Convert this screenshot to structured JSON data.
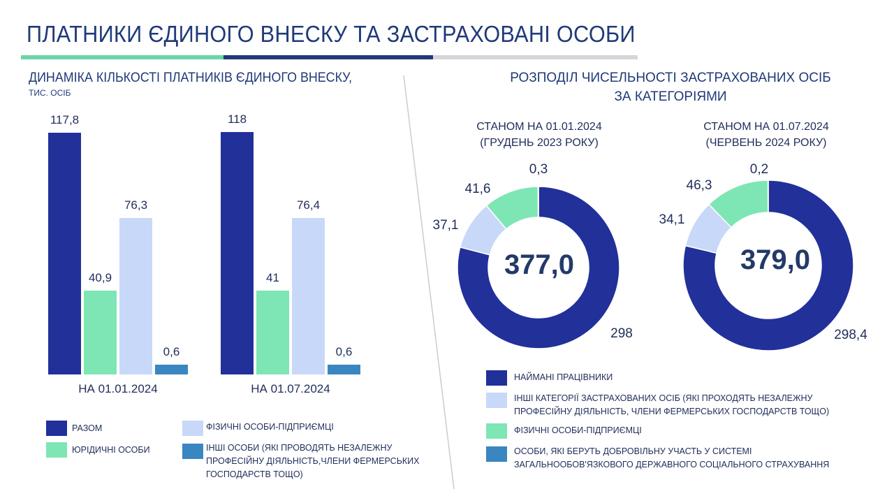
{
  "title": "ПЛАТНИКИ ЄДИНОГО ВНЕСКУ ТА ЗАСТРАХОВАНІ ОСОБИ",
  "colors": {
    "navy": "#22309a",
    "green": "#7de6b4",
    "lightblue": "#c8d8f8",
    "steel": "#3a86c0",
    "title_line_green": "#6bd6a8",
    "title_line_dark": "#1f3a78",
    "title_line_grey": "#d4d6da"
  },
  "left": {
    "title": "ДИНАМІКА КІЛЬКОСТІ ПЛАТНИКІВ ЄДИНОГО ВНЕСКУ,",
    "subtitle": "ТИС. ОСІБ",
    "legend": [
      {
        "label": "РАЗОМ",
        "color": "#22309a"
      },
      {
        "label": "ЮРІДИЧНІ ОСОБИ",
        "color": "#7de6b4"
      },
      {
        "label": "ФІЗИЧНІ ОСОБИ-ПІДПРИЄМЦІ",
        "color": "#c8d8f8"
      },
      {
        "label": "ІНШІ ОСОБИ (ЯКІ ПРОВОДЯТЬ НЕЗАЛЕЖНУ ПРОФЕСІЙНУ ДІЯЛЬНІСТЬ,ЧЛЕНИ ФЕРМЕРСЬКИХ ГОСПОДАРСТВ ТОЩО)",
        "color": "#3a86c0"
      }
    ]
  },
  "right": {
    "title_line1": "РОЗПОДІЛ ЧИСЕЛЬНОСТІ ЗАСТРАХОВАНИХ ОСІБ",
    "title_line2": "ЗА КАТЕГОРІЯМИ",
    "legend": [
      {
        "label": "НАЙМАНІ ПРАЦІВНИКИ",
        "color": "#22309a"
      },
      {
        "label": "ІНШІ КАТЕГОРІЇ ЗАСТРАХОВАНИХ ОСІБ (ЯКІ ПРОХОДЯТЬ НЕЗАЛЕЖНУ ПРОФЕСІЙНУ ДІЯЛЬНІСТЬ, ЧЛЕНИ ФЕРМЕРСЬКИХ ГОСПОДАРСТВ ТОЩО)",
        "color": "#c8d8f8"
      },
      {
        "label": "ФІЗИЧНІ ОСОБИ-ПІДПРИЄМЦІ",
        "color": "#7de6b4"
      },
      {
        "label": "ОСОБИ, ЯКІ БЕРУТЬ ДОБРОВІЛЬНУ УЧАСТЬ У СИСТЕМІ ЗАГАЛЬНООБОВ'ЯЗКОВОГО ДЕРЖАВНОГО СОЦІАЛЬНОГО СТРАХУВАННЯ",
        "color": "#3a86c0"
      }
    ]
  },
  "chart_data": [
    {
      "type": "bar",
      "title": "ДИНАМІКА КІЛЬКОСТІ ПЛАТНИКІВ ЄДИНОГО ВНЕСКУ,",
      "ylabel": "ТИС. ОСІБ",
      "categories": [
        "НА 01.01.2024",
        "НА 01.07.2024"
      ],
      "series": [
        {
          "name": "РАЗОМ",
          "values": [
            117.8,
            118
          ],
          "labels": [
            "117,8",
            "118"
          ]
        },
        {
          "name": "ЮРІДИЧНІ ОСОБИ",
          "values": [
            40.9,
            41
          ],
          "labels": [
            "40,9",
            "41"
          ]
        },
        {
          "name": "ФІЗИЧНІ ОСОБИ-ПІДПРИЄМЦІ",
          "values": [
            76.3,
            76.4
          ],
          "labels": [
            "76,3",
            "76,4"
          ]
        },
        {
          "name": "ІНШІ ОСОБИ (ЯКІ ПРОВОДЯТЬ НЕЗАЛЕЖНУ ПРОФЕСІЙНУ ДІЯЛЬНІСТЬ,ЧЛЕНИ ФЕРМЕРСЬКИХ ГОСПОДАРСТВ ТОЩО)",
          "values": [
            0.6,
            0.6
          ],
          "labels": [
            "0,6",
            "0,6"
          ]
        }
      ],
      "ylim": [
        0,
        120
      ],
      "grid": false,
      "legend": "bottom"
    },
    {
      "type": "pie",
      "donut": true,
      "heading_line1": "СТАНОМ НА 01.01.2024",
      "heading_line2": "(ГРУДЕНЬ 2023 РОКУ)",
      "total": "377,0",
      "slices": [
        {
          "name": "НАЙМАНІ ПРАЦІВНИКИ",
          "value": 298,
          "label": "298"
        },
        {
          "name": "ІНШІ КАТЕГОРІЇ ЗАСТРАХОВАНИХ ОСІБ",
          "value": 37.1,
          "label": "37,1"
        },
        {
          "name": "ФІЗИЧНІ ОСОБИ-ПІДПРИЄМЦІ",
          "value": 41.6,
          "label": "41,6"
        },
        {
          "name": "ОСОБИ, ЯКІ БЕРУТЬ ДОБРОВІЛЬНУ УЧАСТЬ",
          "value": 0.3,
          "label": "0,3"
        }
      ]
    },
    {
      "type": "pie",
      "donut": true,
      "heading_line1": "СТАНОМ НА 01.07.2024",
      "heading_line2": "(ЧЕРВЕНЬ 2024 РОКУ)",
      "total": "379,0",
      "slices": [
        {
          "name": "НАЙМАНІ ПРАЦІВНИКИ",
          "value": 298.4,
          "label": "298,4"
        },
        {
          "name": "ІНШІ КАТЕГОРІЇ ЗАСТРАХОВАНИХ ОСІБ",
          "value": 34.1,
          "label": "34,1"
        },
        {
          "name": "ФІЗИЧНІ ОСОБИ-ПІДПРИЄМЦІ",
          "value": 46.3,
          "label": "46,3"
        },
        {
          "name": "ОСОБИ, ЯКІ БЕРУТЬ ДОБРОВІЛЬНУ УЧАСТЬ",
          "value": 0.2,
          "label": "0,2"
        }
      ]
    }
  ]
}
